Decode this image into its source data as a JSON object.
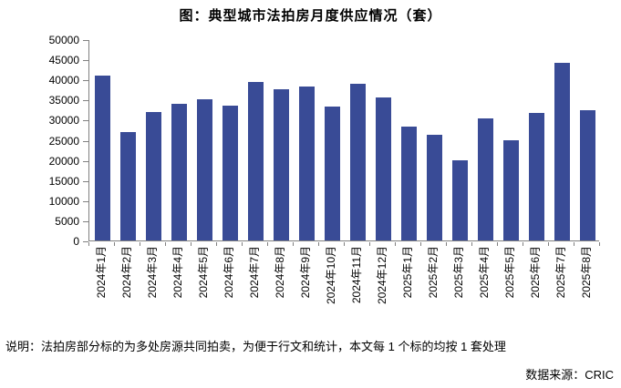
{
  "header": {
    "title": "图：典型城市法拍房月度供应情况（套）"
  },
  "footer": {
    "note": "说明：法拍房部分标的为多处房源共同拍卖，为便于行文和统计，本文每 1 个标的均按 1 套处理",
    "source": "数据来源：CRIC"
  },
  "colors": {
    "bar": "#394B96",
    "axis": "#808080",
    "text": "#000000"
  },
  "chart_data": {
    "type": "bar",
    "title": "图：典型城市法拍房月度供应情况（套）",
    "categories": [
      "2024年1月",
      "2024年2月",
      "2024年3月",
      "2024年4月",
      "2024年5月",
      "2024年6月",
      "2024年7月",
      "2024年8月",
      "2024年9月",
      "2024年10月",
      "2024年11月",
      "2024年12月",
      "2025年1月",
      "2025年2月",
      "2025年3月",
      "2025年4月",
      "2025年5月",
      "2025年6月",
      "2025年7月",
      "2025年8月"
    ],
    "values": [
      41000,
      27000,
      32000,
      34000,
      35100,
      33500,
      39400,
      37600,
      38300,
      33300,
      38900,
      35500,
      28300,
      26300,
      19800,
      30400,
      24900,
      31700,
      44200,
      32300
    ],
    "xlabel": "",
    "ylabel": "",
    "ylim": [
      0,
      50000
    ],
    "ytick_step": 5000,
    "grid": false,
    "legend_position": "none",
    "bar_color": "#394B96",
    "axis_color": "#808080",
    "unit": "套"
  }
}
